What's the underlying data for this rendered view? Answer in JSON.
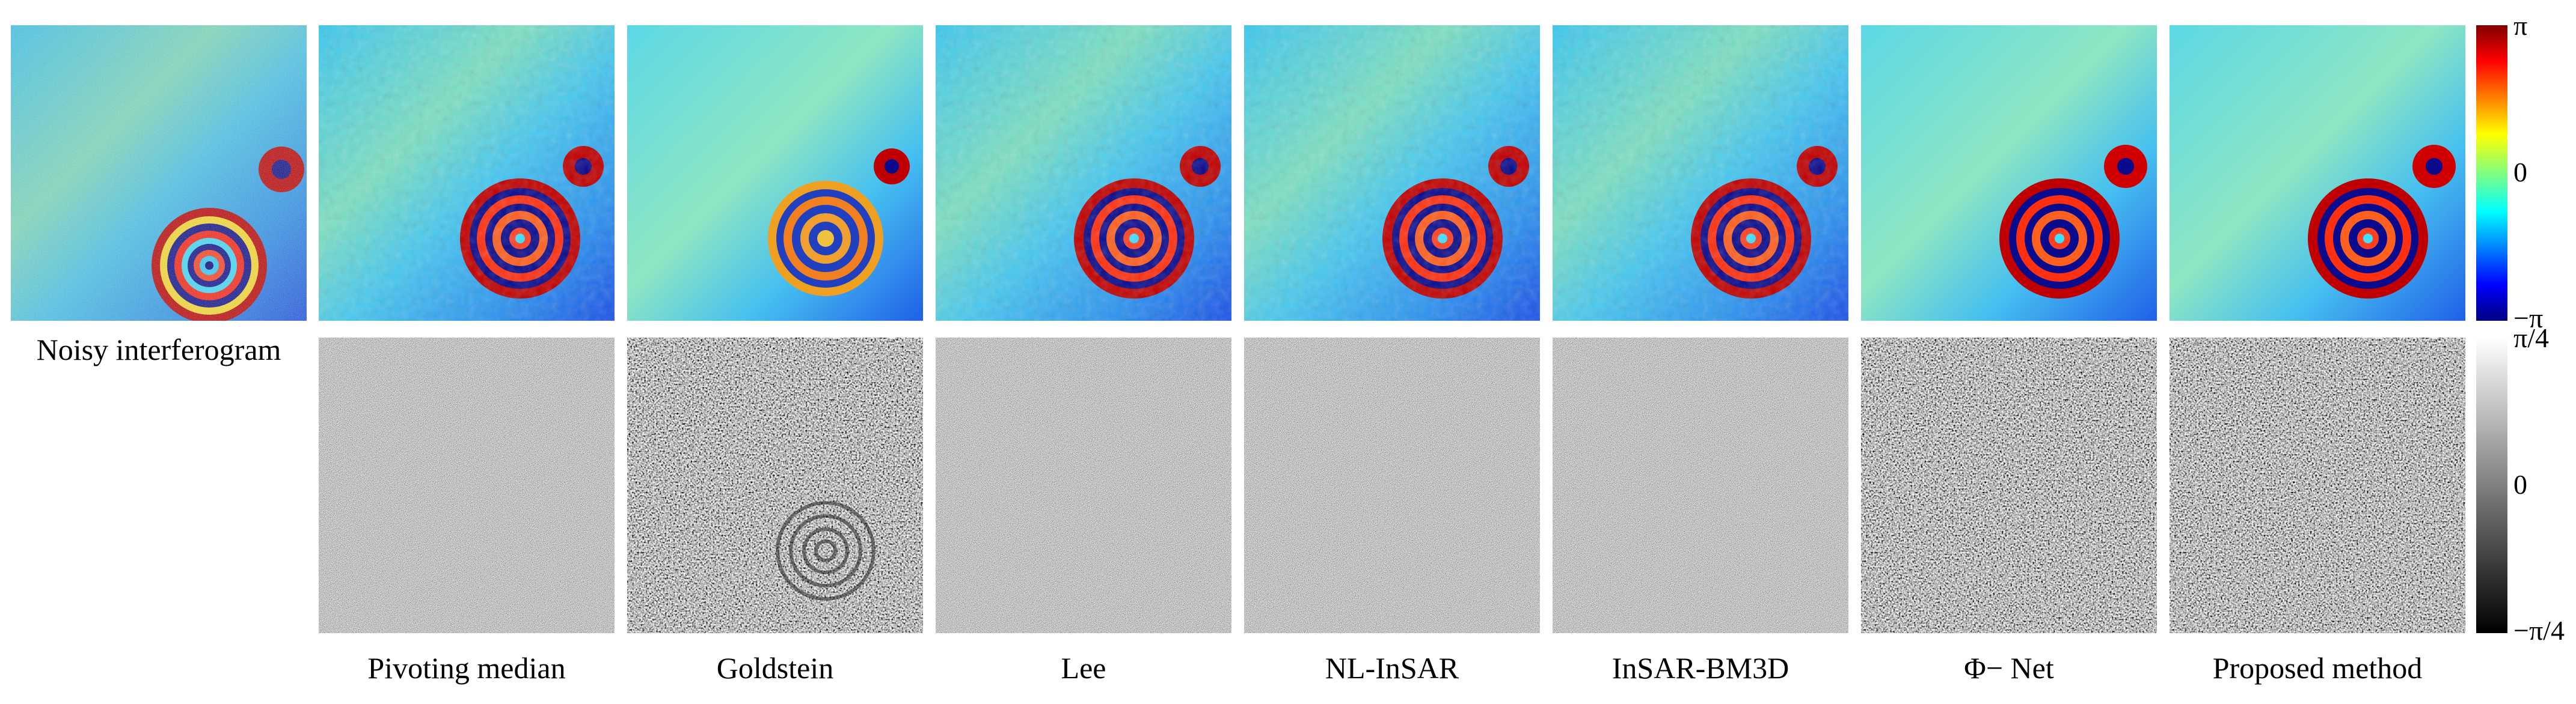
{
  "figure": {
    "top_row_labels": [
      "Noisy interferogram"
    ],
    "method_labels": [
      "Pivoting median",
      "Goldstein",
      "Lee",
      "NL-InSAR",
      "InSAR-BM3D",
      "Φ− Net",
      "Proposed method"
    ],
    "phase_colorbar": {
      "colormap": "jet",
      "ticks": [
        "π",
        "0",
        "−π"
      ]
    },
    "residual_colorbar": {
      "colormap": "gray",
      "ticks": [
        "π/4",
        "0",
        "−π/4"
      ]
    },
    "colors": {
      "fringe_dark_blue": "#0a0a8c",
      "fringe_red": "#c00000",
      "background_cyan": "#46c8f0",
      "background_yellow": "#e6e650"
    }
  }
}
